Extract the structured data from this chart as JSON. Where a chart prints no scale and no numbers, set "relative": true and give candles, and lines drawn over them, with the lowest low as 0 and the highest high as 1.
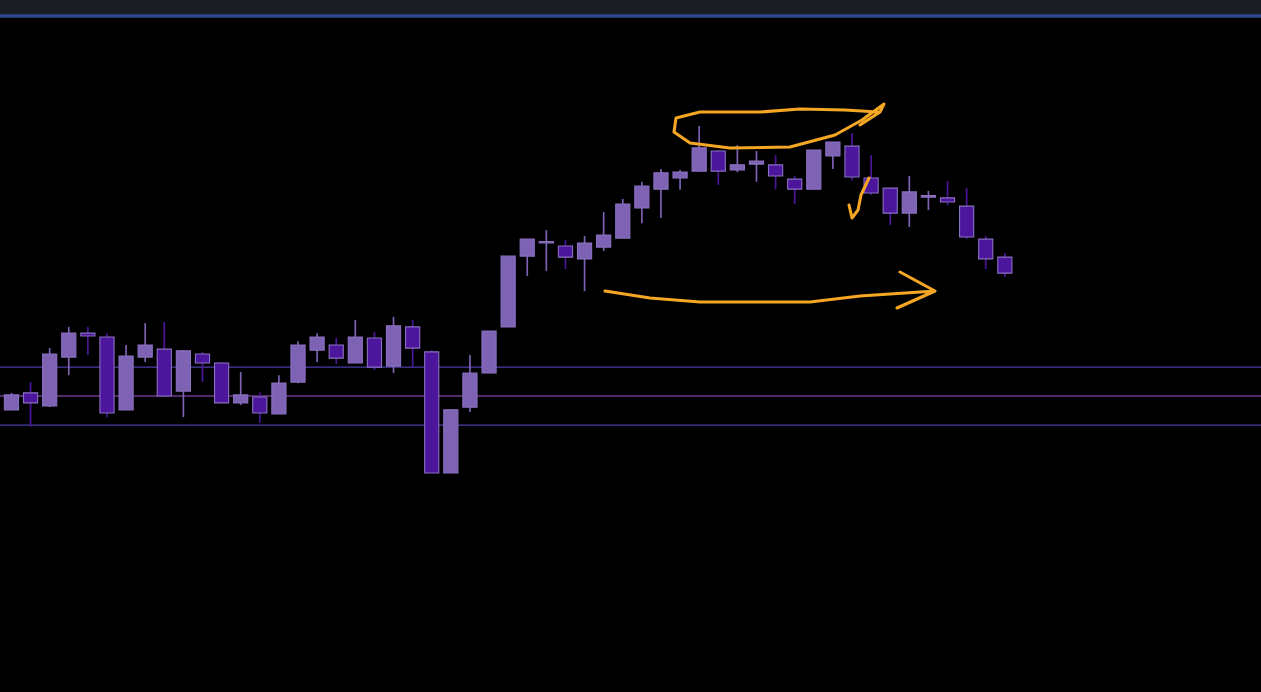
{
  "chart_data": {
    "type": "candlestick",
    "relative": true,
    "categories": [
      null,
      null,
      null,
      null,
      null,
      null,
      null,
      null,
      null,
      null,
      null,
      null,
      null,
      null,
      null,
      null,
      null,
      null,
      null,
      null,
      null,
      null,
      null,
      null,
      null,
      null,
      null,
      null,
      null,
      null,
      null,
      null,
      null,
      null,
      null,
      null,
      null,
      null,
      null,
      null,
      null,
      null,
      null,
      null,
      null,
      null,
      null,
      null,
      null,
      null,
      null,
      null,
      null
    ],
    "ohlc": [
      [
        0.182,
        0.231,
        0.182,
        0.225
      ],
      [
        0.231,
        0.262,
        0.133,
        0.202
      ],
      [
        0.193,
        0.36,
        0.19,
        0.343
      ],
      [
        0.334,
        0.421,
        0.282,
        0.403
      ],
      [
        0.403,
        0.421,
        0.34,
        0.395
      ],
      [
        0.392,
        0.403,
        0.161,
        0.173
      ],
      [
        0.182,
        0.369,
        0.182,
        0.337
      ],
      [
        0.334,
        0.432,
        0.32,
        0.369
      ],
      [
        0.357,
        0.435,
        0.222,
        0.222
      ],
      [
        0.236,
        0.354,
        0.161,
        0.352
      ],
      [
        0.343,
        0.349,
        0.262,
        0.317
      ],
      [
        0.317,
        0.32,
        0.202,
        0.202
      ],
      [
        0.202,
        0.291,
        0.196,
        0.225
      ],
      [
        0.219,
        0.233,
        0.144,
        0.173
      ],
      [
        0.17,
        0.282,
        0.17,
        0.259
      ],
      [
        0.262,
        0.38,
        0.259,
        0.369
      ],
      [
        0.354,
        0.403,
        0.32,
        0.392
      ],
      [
        0.369,
        0.389,
        0.314,
        0.331
      ],
      [
        0.317,
        0.441,
        0.317,
        0.392
      ],
      [
        0.389,
        0.406,
        0.297,
        0.305
      ],
      [
        0.308,
        0.45,
        0.288,
        0.424
      ],
      [
        0.421,
        0.441,
        0.305,
        0.36
      ],
      [
        0.349,
        0.354,
        0.0,
        0.0
      ],
      [
        0.0,
        0.184,
        0.0,
        0.182
      ],
      [
        0.19,
        0.34,
        0.176,
        0.288
      ],
      [
        0.288,
        0.409,
        0.288,
        0.409
      ],
      [
        0.421,
        0.625,
        0.421,
        0.625
      ],
      [
        0.625,
        0.674,
        0.568,
        0.674
      ],
      [
        0.663,
        0.7,
        0.582,
        0.666
      ],
      [
        0.654,
        0.671,
        0.588,
        0.622
      ],
      [
        0.617,
        0.683,
        0.524,
        0.663
      ],
      [
        0.651,
        0.752,
        0.64,
        0.686
      ],
      [
        0.677,
        0.79,
        0.677,
        0.775
      ],
      [
        0.764,
        0.839,
        0.72,
        0.827
      ],
      [
        0.818,
        0.876,
        0.735,
        0.865
      ],
      [
        0.85,
        0.873,
        0.816,
        0.867
      ],
      [
        0.87,
        1.0,
        0.87,
        0.937
      ],
      [
        0.928,
        0.931,
        0.83,
        0.87
      ],
      [
        0.873,
        0.945,
        0.867,
        0.888
      ],
      [
        0.89,
        0.928,
        0.839,
        0.899
      ],
      [
        0.888,
        0.916,
        0.818,
        0.856
      ],
      [
        0.847,
        0.856,
        0.775,
        0.818
      ],
      [
        0.818,
        0.931,
        0.818,
        0.931
      ],
      [
        0.914,
        0.954,
        0.876,
        0.954
      ],
      [
        0.942,
        0.98,
        0.844,
        0.853
      ],
      [
        0.85,
        0.916,
        0.801,
        0.807
      ],
      [
        0.821,
        0.821,
        0.715,
        0.749
      ],
      [
        0.749,
        0.856,
        0.709,
        0.81
      ],
      [
        0.795,
        0.813,
        0.758,
        0.795
      ],
      [
        0.793,
        0.841,
        0.772,
        0.781
      ],
      [
        0.769,
        0.821,
        0.674,
        0.68
      ],
      [
        0.674,
        0.683,
        0.588,
        0.617
      ],
      [
        0.622,
        0.634,
        0.565,
        0.576
      ]
    ],
    "colors": [
      "#7e62b4",
      "#4c169c",
      "#7e62b4",
      "#7e62b4",
      "#4c169c",
      "#4c169c",
      "#7e62b4",
      "#7e62b4",
      "#4c169c",
      "#7e62b4",
      "#4c169c",
      "#4c169c",
      "#7e62b4",
      "#4c169c",
      "#7e62b4",
      "#7e62b4",
      "#7e62b4",
      "#4c169c",
      "#7e62b4",
      "#4c169c",
      "#7e62b4",
      "#4c169c",
      "#4c169c",
      "#7e62b4",
      "#7e62b4",
      "#7e62b4",
      "#7e62b4",
      "#7e62b4",
      "#7e62b4",
      "#4c169c",
      "#7e62b4",
      "#7e62b4",
      "#7e62b4",
      "#7e62b4",
      "#7e62b4",
      "#7e62b4",
      "#7e62b4",
      "#4c169c",
      "#7e62b4",
      "#7e62b4",
      "#4c169c",
      "#4c169c",
      "#7e62b4",
      "#7e62b4",
      "#4c169c",
      "#4c169c",
      "#4c169c",
      "#7e62b4",
      "#7e62b4",
      "#4c169c",
      "#4c169c",
      "#4c169c",
      "#4c169c"
    ],
    "ref_lines": [
      {
        "axis": "y",
        "value": 0.305,
        "color": "#4a3fa8"
      },
      {
        "axis": "y",
        "value": 0.222,
        "color": "#6e3a8e"
      },
      {
        "axis": "y",
        "value": 0.138,
        "color": "#4a3fa8"
      }
    ]
  }
}
